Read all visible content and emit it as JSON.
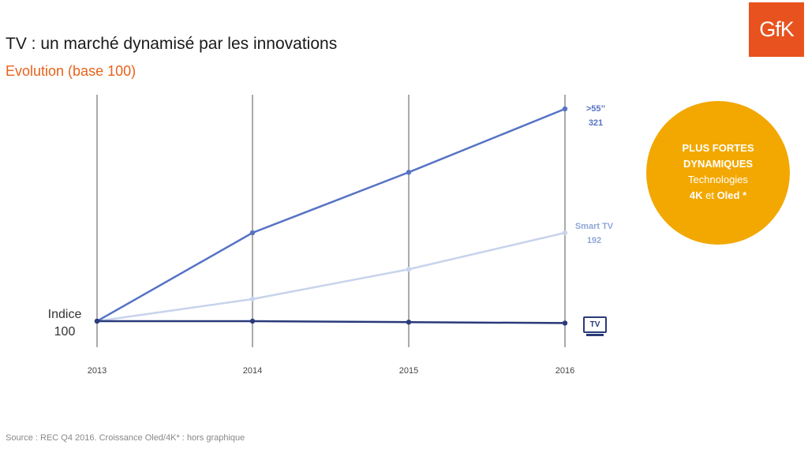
{
  "title": "TV : un marché dynamisé par les innovations",
  "subtitle": "Evolution (base 100)",
  "logo": "GfK",
  "indice": {
    "line1": "Indice",
    "line2": "100"
  },
  "labels": {
    "gt55_name": ">55’’",
    "gt55_value": "321",
    "smart_name": "Smart TV",
    "smart_value": "192",
    "tv_icon_text": "TV"
  },
  "callout": {
    "line1": "PLUS FORTES",
    "line2": "DYNAMIQUES",
    "line3": "Technologies",
    "line4a": "4K",
    "line4b": " et ",
    "line4c": "Oled",
    "line4d": " *"
  },
  "source": "Source : REC Q4 2016. Croissance Oled/4K* :  hors graphique",
  "chart_data": {
    "type": "line",
    "x": [
      "2013",
      "2014",
      "2015",
      "2016"
    ],
    "ylim": [
      95,
      330
    ],
    "series": [
      {
        "name": ">55’’",
        "values": [
          100,
          192,
          255,
          321
        ],
        "color": "#5673c4"
      },
      {
        "name": "Smart TV",
        "values": [
          100,
          123,
          154,
          192
        ],
        "color": "#c8d3ec"
      },
      {
        "name": "TV",
        "values": [
          100,
          100,
          99,
          98
        ],
        "color": "#2a3a7a"
      }
    ],
    "grid": "vertical",
    "legend": "none"
  }
}
